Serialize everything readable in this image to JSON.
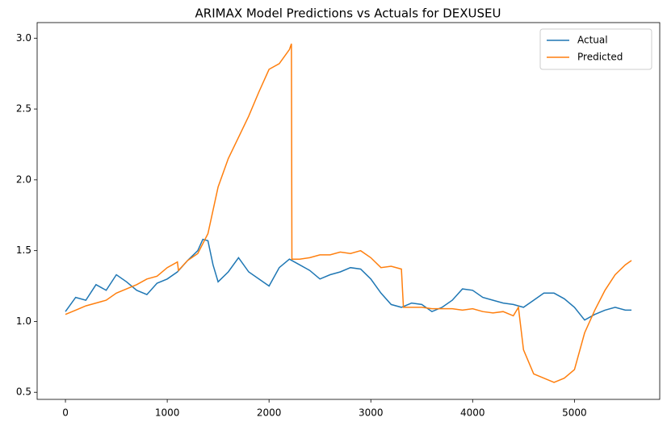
{
  "chart_data": {
    "type": "line",
    "title": "ARIMAX Model Predictions vs Actuals for DEXUSEU",
    "xlim": [
      -278,
      5838
    ],
    "ylim": [
      0.45,
      3.11
    ],
    "xticks": [
      0,
      1000,
      2000,
      3000,
      4000,
      5000
    ],
    "yticks": [
      0.5,
      {
        "value": 1.0,
        "label": "1.0"
      },
      1.5,
      {
        "value": 2.0,
        "label": "2.0"
      },
      2.5,
      {
        "value": 3.0,
        "label": "3.0"
      }
    ],
    "legend": "upper right",
    "series": [
      {
        "name": "Actual",
        "color": "#1f77b4",
        "x": [
          0,
          100,
          200,
          300,
          400,
          500,
          600,
          700,
          800,
          900,
          1000,
          1100,
          1200,
          1300,
          1350,
          1400,
          1450,
          1500,
          1600,
          1700,
          1800,
          1900,
          2000,
          2100,
          2200,
          2300,
          2400,
          2500,
          2600,
          2700,
          2800,
          2900,
          3000,
          3100,
          3200,
          3300,
          3400,
          3500,
          3600,
          3700,
          3800,
          3900,
          4000,
          4100,
          4200,
          4300,
          4400,
          4500,
          4600,
          4700,
          4800,
          4900,
          5000,
          5100,
          5200,
          5300,
          5400,
          5500,
          5560
        ],
        "values": [
          1.07,
          1.17,
          1.15,
          1.26,
          1.22,
          1.33,
          1.28,
          1.22,
          1.19,
          1.27,
          1.3,
          1.35,
          1.43,
          1.5,
          1.58,
          1.57,
          1.4,
          1.28,
          1.35,
          1.45,
          1.35,
          1.3,
          1.25,
          1.38,
          1.44,
          1.4,
          1.36,
          1.3,
          1.33,
          1.35,
          1.38,
          1.37,
          1.3,
          1.2,
          1.12,
          1.1,
          1.13,
          1.12,
          1.07,
          1.1,
          1.15,
          1.23,
          1.22,
          1.17,
          1.15,
          1.13,
          1.12,
          1.1,
          1.15,
          1.2,
          1.2,
          1.16,
          1.1,
          1.01,
          1.05,
          1.08,
          1.1,
          1.08,
          1.08
        ]
      },
      {
        "name": "Predicted",
        "color": "#ff7f0e",
        "x": [
          0,
          100,
          200,
          300,
          400,
          500,
          600,
          700,
          800,
          900,
          1000,
          1100,
          1110,
          1200,
          1300,
          1400,
          1500,
          1600,
          1700,
          1800,
          1900,
          2000,
          2100,
          2200,
          2220,
          2225,
          2300,
          2400,
          2500,
          2600,
          2700,
          2800,
          2900,
          3000,
          3100,
          3200,
          3300,
          3320,
          3400,
          3500,
          3600,
          3700,
          3800,
          3900,
          4000,
          4100,
          4200,
          4300,
          4400,
          4450,
          4500,
          4600,
          4700,
          4800,
          4900,
          5000,
          5100,
          5200,
          5300,
          5400,
          5500,
          5560
        ],
        "values": [
          1.05,
          1.08,
          1.11,
          1.13,
          1.15,
          1.2,
          1.23,
          1.26,
          1.3,
          1.32,
          1.38,
          1.42,
          1.36,
          1.43,
          1.48,
          1.62,
          1.95,
          2.15,
          2.3,
          2.45,
          2.62,
          2.78,
          2.82,
          2.92,
          2.96,
          1.44,
          1.44,
          1.45,
          1.47,
          1.47,
          1.49,
          1.48,
          1.5,
          1.45,
          1.38,
          1.39,
          1.37,
          1.1,
          1.1,
          1.1,
          1.09,
          1.09,
          1.09,
          1.08,
          1.09,
          1.07,
          1.06,
          1.07,
          1.04,
          1.1,
          0.8,
          0.63,
          0.6,
          0.57,
          0.6,
          0.66,
          0.92,
          1.08,
          1.22,
          1.33,
          1.4,
          1.43
        ]
      }
    ]
  }
}
